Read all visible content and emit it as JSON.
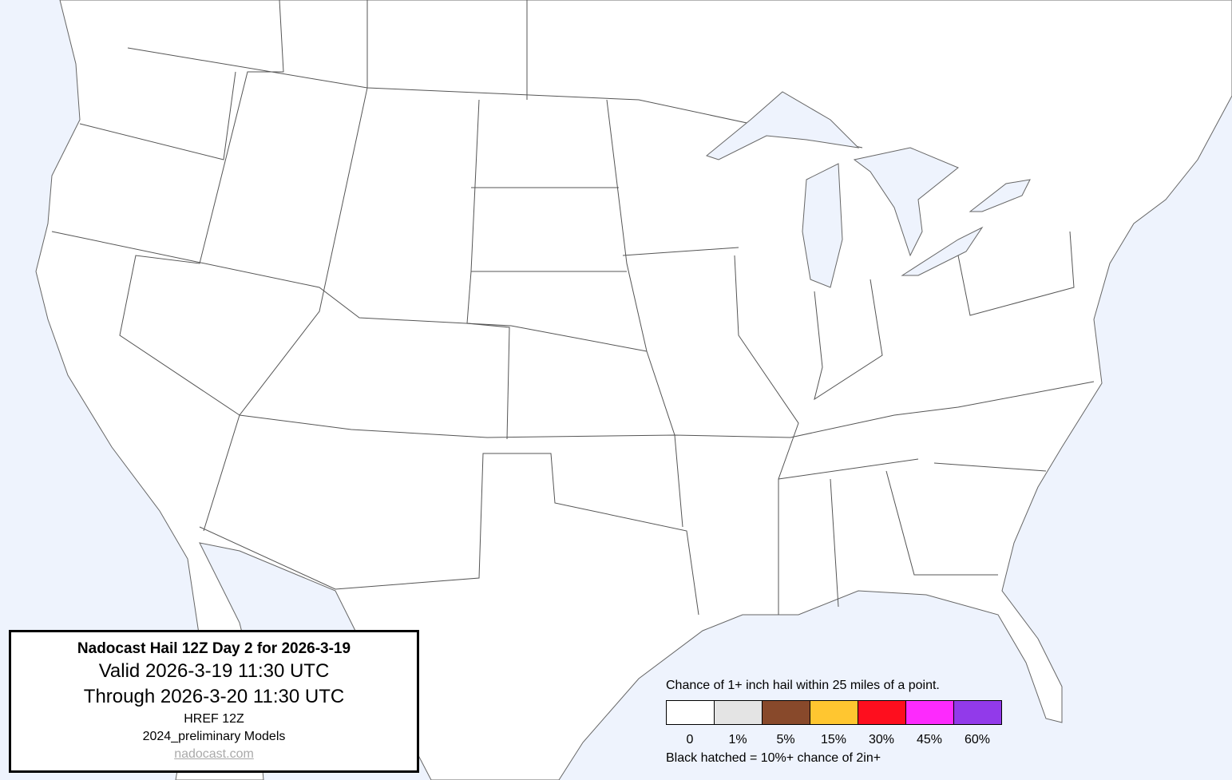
{
  "info": {
    "title": "Nadocast Hail 12Z Day 2 for 2026-3-19",
    "valid": "Valid 2026-3-19 11:30 UTC",
    "through": "Through 2026-3-20 11:30 UTC",
    "model": "HREF 12Z",
    "models": "2024_preliminary Models",
    "link": "nadocast.com"
  },
  "legend": {
    "caption": "Chance of 1+ inch hail within 25 miles of a point.",
    "bins": [
      {
        "label": "0",
        "color": "#ffffff"
      },
      {
        "label": "1%",
        "color": "#e4e4e4"
      },
      {
        "label": "5%",
        "color": "#88492b"
      },
      {
        "label": "15%",
        "color": "#ffc630"
      },
      {
        "label": "30%",
        "color": "#fe0e1e"
      },
      {
        "label": "45%",
        "color": "#fd2afd"
      },
      {
        "label": "60%",
        "color": "#923aea"
      }
    ],
    "note": "Black hatched = 10%+ chance of 2in+"
  },
  "colors": {
    "water": "#eef3fd",
    "land": "#ffffff",
    "borders": "#555555"
  }
}
